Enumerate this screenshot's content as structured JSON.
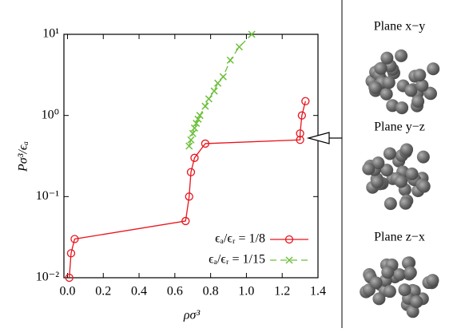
{
  "chart_data": {
    "type": "line",
    "xlabel": "ρσ³",
    "ylabel": "Pσ³/ϵₐ",
    "xlim": [
      -0.02,
      1.4
    ],
    "xticks": [
      {
        "value": 0,
        "label": "0.0"
      },
      0.2,
      0.4,
      0.6,
      0.8,
      {
        "value": 1,
        "label": "1.0"
      },
      1.2,
      1.4
    ],
    "ylim": [
      0.01,
      10
    ],
    "yticks": [
      {
        "value": 0.01,
        "label": "10⁻²"
      },
      {
        "value": 0.1,
        "label": "10⁻¹"
      },
      {
        "value": 1,
        "label": "10⁰"
      },
      {
        "value": 10,
        "label": "10¹"
      }
    ],
    "log_y": true,
    "legend": "lower right",
    "series": [
      {
        "name": "ϵₐ/ϵᵣ = 1/8",
        "color": "#e8141c",
        "marker": "circle",
        "dashed": false,
        "x": [
          0.01,
          0.02,
          0.04,
          0.66,
          0.68,
          0.69,
          0.71,
          0.77,
          1.3,
          1.3,
          1.31,
          1.33
        ],
        "values": [
          0.01,
          0.02,
          0.03,
          0.05,
          0.1,
          0.2,
          0.3,
          0.45,
          0.5,
          0.6,
          1.0,
          1.5
        ]
      },
      {
        "name": "ϵₐ/ϵᵣ = 1/15",
        "color": "#6cbf3a",
        "marker": "x",
        "dashed": true,
        "x": [
          0.68,
          0.69,
          0.7,
          0.71,
          0.72,
          0.73,
          0.74,
          0.77,
          0.79,
          0.82,
          0.84,
          0.87,
          0.91,
          0.96,
          1.03
        ],
        "values": [
          0.42,
          0.5,
          0.6,
          0.7,
          0.8,
          0.9,
          1.0,
          1.3,
          1.6,
          2.0,
          2.5,
          3.0,
          4.8,
          7.0,
          10
        ]
      }
    ]
  },
  "panel": {
    "labels": [
      "Plane x−y",
      "Plane y−z",
      "Plane z−x"
    ]
  }
}
